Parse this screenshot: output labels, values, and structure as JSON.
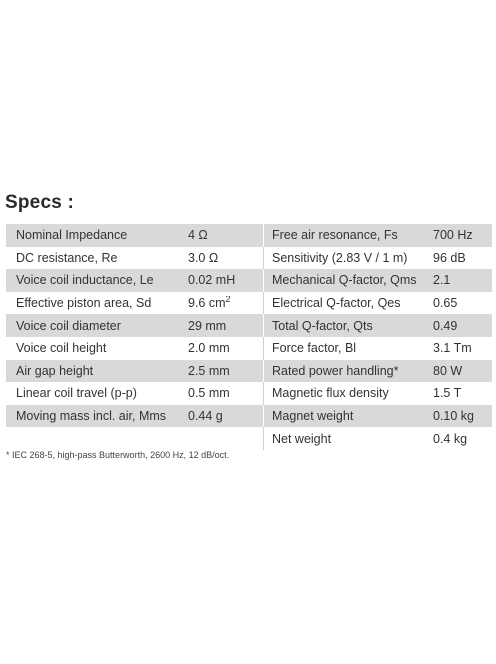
{
  "title": "Specs :",
  "rows": [
    {
      "l1": "Nominal Impedance",
      "v1": "4 Ω",
      "l2": "Free air resonance, Fs",
      "v2": "700 Hz"
    },
    {
      "l1": "DC resistance, Re",
      "v1": "3.0 Ω",
      "l2": "Sensitivity (2.83 V / 1 m)",
      "v2": "96 dB"
    },
    {
      "l1": "Voice coil inductance, Le",
      "v1": "0.02 mH",
      "l2": "Mechanical Q-factor, Qms",
      "v2": "2.1"
    },
    {
      "l1": "Effective piston area, Sd",
      "v1": "9.6 cm",
      "v1sup": "2",
      "l2": "Electrical Q-factor, Qes",
      "v2": "0.65"
    },
    {
      "l1": "Voice coil diameter",
      "v1": "29 mm",
      "l2": "Total Q-factor, Qts",
      "v2": "0.49"
    },
    {
      "l1": "Voice coil height",
      "v1": "2.0 mm",
      "l2": "Force factor, Bl",
      "v2": "3.1 Tm"
    },
    {
      "l1": "Air gap height",
      "v1": "2.5 mm",
      "l2": "Rated power handling*",
      "v2": "80 W"
    },
    {
      "l1": "Linear coil travel (p-p)",
      "v1": "0.5 mm",
      "l2": "Magnetic flux density",
      "v2": "1.5 T"
    },
    {
      "l1": "Moving mass incl. air, Mms",
      "v1": "0.44 g",
      "l2": "Magnet weight",
      "v2": "0.10 kg"
    },
    {
      "l1": "",
      "v1": "",
      "l2": "Net weight",
      "v2": "0.4 kg"
    }
  ],
  "footnote": "* IEC 268-5, high-pass Butterworth, 2600 Hz, 12 dB/oct."
}
